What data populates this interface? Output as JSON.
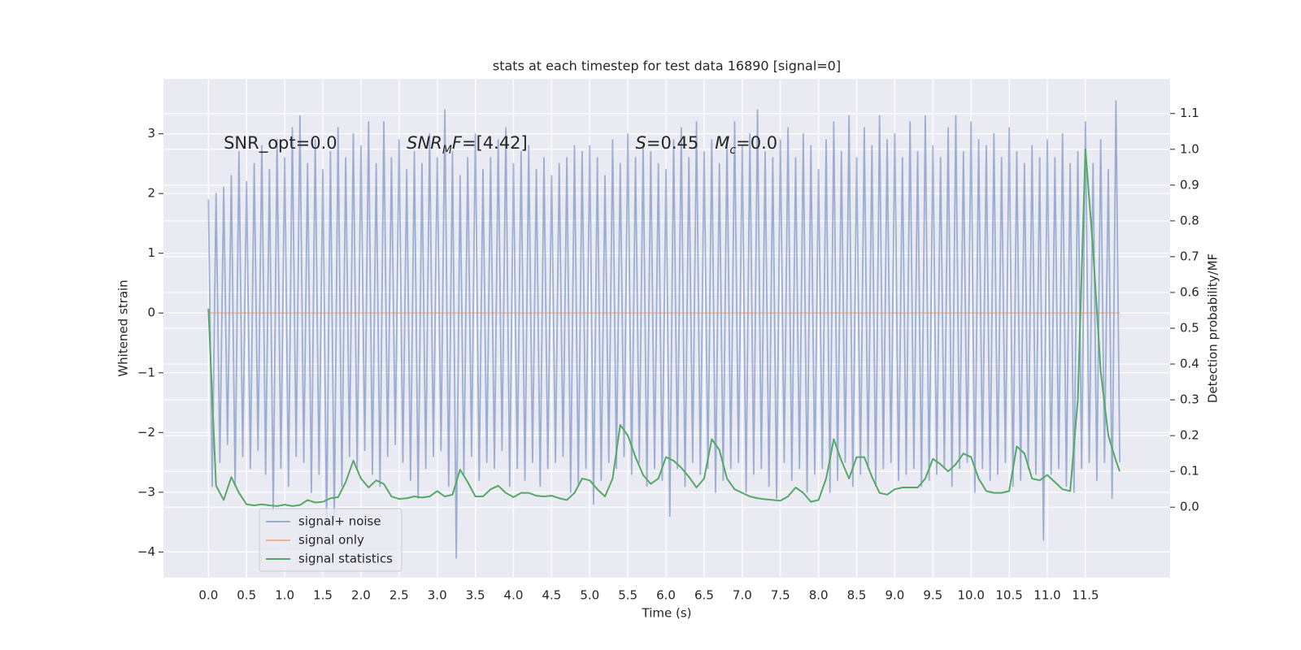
{
  "chart_data": {
    "type": "line",
    "title": "stats at each timestep for test data 16890 [signal=0]",
    "xlabel": "Time (s)",
    "ylabel": "Whitened strain",
    "y2label": "Detection probability/MF",
    "annotations": [
      [
        {
          "text": "SNR_opt=0.0",
          "italic": false,
          "sub": false
        }
      ],
      [
        {
          "text": "SNR",
          "italic": true,
          "sub": false
        },
        {
          "text": "M",
          "italic": true,
          "sub": true
        },
        {
          "text": "F",
          "italic": true,
          "sub": false
        },
        {
          "text": "=[4.42]",
          "italic": false,
          "sub": false
        }
      ],
      [
        {
          "text": "S",
          "italic": true,
          "sub": false
        },
        {
          "text": "=0.45   ",
          "italic": false,
          "sub": false
        },
        {
          "text": "M",
          "italic": true,
          "sub": false
        },
        {
          "text": "c",
          "italic": true,
          "sub": true
        },
        {
          "text": "=0.0",
          "italic": false,
          "sub": false
        }
      ]
    ],
    "xlim": [
      -0.59,
      12.61
    ],
    "ylim": [
      -4.43,
      3.92
    ],
    "y2lim": [
      -0.197,
      1.197
    ],
    "xticks": [
      {
        "value": 0,
        "label": "0.0"
      },
      0.5,
      {
        "value": 1,
        "label": "1.0"
      },
      1.5,
      {
        "value": 2,
        "label": "2.0"
      },
      2.5,
      {
        "value": 3,
        "label": "3.0"
      },
      3.5,
      {
        "value": 4,
        "label": "4.0"
      },
      4.5,
      {
        "value": 5,
        "label": "5.0"
      },
      5.5,
      {
        "value": 6,
        "label": "6.0"
      },
      6.5,
      {
        "value": 7,
        "label": "7.0"
      },
      7.5,
      {
        "value": 8,
        "label": "8.0"
      },
      8.5,
      {
        "value": 9,
        "label": "9.0"
      },
      9.5,
      {
        "value": 10,
        "label": "10.0"
      },
      10.5,
      {
        "value": 11,
        "label": "11.0"
      },
      11.5
    ],
    "yticks": [
      {
        "value": -4,
        "label": "−4"
      },
      {
        "value": -3,
        "label": "−3"
      },
      {
        "value": -2,
        "label": "−2"
      },
      {
        "value": -1,
        "label": "−1"
      },
      0,
      1,
      2,
      3
    ],
    "y2ticks": [
      {
        "value": 0,
        "label": "0.0"
      },
      0.1,
      0.2,
      0.3,
      0.4,
      0.5,
      0.6,
      0.7,
      0.8,
      0.9,
      {
        "value": 1,
        "label": "1.0"
      },
      1.1
    ],
    "grid": true,
    "legend": "lower left",
    "background": "#eaeaf2",
    "series": [
      {
        "name": "signal+ noise",
        "color": "#4c72b0",
        "alpha": 0.5,
        "axis": "y",
        "x": [
          0,
          0.05,
          0.1,
          0.15,
          0.2,
          0.25,
          0.3,
          0.35,
          0.4,
          0.45,
          0.5,
          0.55,
          0.6,
          0.65,
          0.7,
          0.75,
          0.8,
          0.85,
          0.9,
          0.95,
          1,
          1.05,
          1.1,
          1.15,
          1.2,
          1.25,
          1.3,
          1.35,
          1.4,
          1.45,
          1.5,
          1.55,
          1.6,
          1.65,
          1.7,
          1.75,
          1.8,
          1.85,
          1.9,
          1.95,
          2,
          2.05,
          2.1,
          2.15,
          2.2,
          2.25,
          2.3,
          2.35,
          2.4,
          2.45,
          2.5,
          2.55,
          2.6,
          2.65,
          2.7,
          2.75,
          2.8,
          2.85,
          2.9,
          2.95,
          3,
          3.05,
          3.1,
          3.15,
          3.2,
          3.25,
          3.3,
          3.35,
          3.4,
          3.45,
          3.5,
          3.55,
          3.6,
          3.65,
          3.7,
          3.75,
          3.8,
          3.85,
          3.9,
          3.95,
          4,
          4.05,
          4.1,
          4.15,
          4.2,
          4.25,
          4.3,
          4.35,
          4.4,
          4.45,
          4.5,
          4.55,
          4.6,
          4.65,
          4.7,
          4.75,
          4.8,
          4.85,
          4.9,
          4.95,
          5,
          5.05,
          5.1,
          5.15,
          5.2,
          5.25,
          5.3,
          5.35,
          5.4,
          5.45,
          5.5,
          5.55,
          5.6,
          5.65,
          5.7,
          5.75,
          5.8,
          5.85,
          5.9,
          5.95,
          6,
          6.05,
          6.1,
          6.15,
          6.2,
          6.25,
          6.3,
          6.35,
          6.4,
          6.45,
          6.5,
          6.55,
          6.6,
          6.65,
          6.7,
          6.75,
          6.8,
          6.85,
          6.9,
          6.95,
          7,
          7.05,
          7.1,
          7.15,
          7.2,
          7.25,
          7.3,
          7.35,
          7.4,
          7.45,
          7.5,
          7.55,
          7.6,
          7.65,
          7.7,
          7.75,
          7.8,
          7.85,
          7.9,
          7.95,
          8,
          8.05,
          8.1,
          8.15,
          8.2,
          8.25,
          8.3,
          8.35,
          8.4,
          8.45,
          8.5,
          8.55,
          8.6,
          8.65,
          8.7,
          8.75,
          8.8,
          8.85,
          8.9,
          8.95,
          9,
          9.05,
          9.1,
          9.15,
          9.2,
          9.25,
          9.3,
          9.35,
          9.4,
          9.45,
          9.5,
          9.55,
          9.6,
          9.65,
          9.7,
          9.75,
          9.8,
          9.85,
          9.9,
          9.95,
          10,
          10.05,
          10.1,
          10.15,
          10.2,
          10.25,
          10.3,
          10.35,
          10.4,
          10.45,
          10.5,
          10.55,
          10.6,
          10.65,
          10.7,
          10.75,
          10.8,
          10.85,
          10.9,
          10.95,
          11,
          11.05,
          11.1,
          11.15,
          11.2,
          11.25,
          11.3,
          11.35,
          11.4,
          11.45,
          11.5,
          11.55,
          11.6,
          11.65,
          11.7,
          11.75,
          11.8,
          11.85,
          11.9,
          11.95
        ],
        "values": [
          1.9,
          -2.9,
          2.0,
          -2.5,
          2.1,
          -2.2,
          2.3,
          -2.9,
          2.7,
          -2.4,
          2.2,
          -2.6,
          2.5,
          -2.3,
          2.8,
          -2.7,
          2.4,
          -3.3,
          2.9,
          -2.6,
          2.6,
          -2.9,
          3.1,
          -2.4,
          3.3,
          -2.5,
          2.5,
          -3.0,
          2.9,
          -2.7,
          2.4,
          -3.6,
          2.7,
          -3.5,
          3.1,
          -2.9,
          2.6,
          -2.4,
          3.0,
          -2.6,
          2.8,
          -2.3,
          3.2,
          -2.7,
          2.5,
          -2.9,
          3.2,
          -2.4,
          2.6,
          -2.2,
          2.9,
          -2.5,
          2.4,
          -2.8,
          2.7,
          -3.1,
          2.5,
          -2.6,
          3.0,
          -2.4,
          2.6,
          -2.3,
          3.4,
          -2.9,
          2.7,
          -4.1,
          2.3,
          -2.7,
          2.6,
          -2.4,
          3.0,
          -2.8,
          2.4,
          -2.5,
          2.6,
          -2.6,
          2.9,
          -2.3,
          3.1,
          -2.9,
          2.5,
          -2.6,
          2.7,
          -2.8,
          2.8,
          -2.5,
          2.4,
          -2.9,
          2.6,
          -2.6,
          2.3,
          -2.5,
          2.5,
          -2.4,
          2.6,
          -3.0,
          2.8,
          -2.9,
          2.7,
          -2.6,
          2.8,
          -3.2,
          2.6,
          -2.8,
          2.3,
          -2.5,
          2.9,
          -2.6,
          2.5,
          -2.4,
          3.0,
          -2.7,
          2.6,
          -2.5,
          2.8,
          -2.9,
          2.7,
          -2.6,
          2.5,
          -2.8,
          2.4,
          -3.4,
          2.9,
          -2.6,
          3.1,
          -2.9,
          2.6,
          -2.5,
          3.2,
          -2.7,
          2.7,
          -2.6,
          2.9,
          -3.0,
          2.5,
          -2.8,
          2.9,
          -2.6,
          3.2,
          -2.5,
          2.8,
          -3.0,
          3.0,
          -2.7,
          3.4,
          -2.6,
          2.7,
          -2.9,
          2.6,
          -3.1,
          2.9,
          -2.5,
          3.1,
          -2.8,
          2.6,
          -2.6,
          3.0,
          -3.0,
          2.8,
          -2.7,
          2.4,
          -2.6,
          2.9,
          -3.0,
          3.2,
          -2.8,
          2.7,
          -2.5,
          3.3,
          -2.9,
          2.6,
          -2.7,
          3.1,
          -2.6,
          2.8,
          -2.9,
          3.3,
          -2.6,
          2.9,
          -2.5,
          3.0,
          -2.8,
          2.6,
          -2.7,
          3.2,
          -2.6,
          2.7,
          -2.9,
          3.3,
          -2.8,
          2.8,
          -2.7,
          2.6,
          -2.6,
          3.1,
          -2.9,
          3.3,
          -2.6,
          2.7,
          -2.5,
          3.2,
          -3.0,
          2.9,
          -2.6,
          2.8,
          -2.8,
          3.0,
          -2.7,
          2.6,
          -2.5,
          3.1,
          -2.9,
          2.7,
          -2.8,
          2.5,
          -2.6,
          2.8,
          -2.7,
          2.6,
          -3.8,
          2.9,
          -2.7,
          2.6,
          -2.6,
          3.0,
          -2.9,
          2.5,
          -3.0,
          2.7,
          -2.6,
          3.2,
          -2.5,
          2.5,
          -2.8,
          2.9,
          -2.5,
          2.4,
          -3.1,
          3.55,
          -2.5
        ]
      },
      {
        "name": "signal only",
        "color": "#dd8452",
        "alpha": 0.5,
        "axis": "y",
        "x": [
          0,
          11.95
        ],
        "values": [
          0,
          0
        ]
      },
      {
        "name": "signal statistics",
        "color": "#55a868",
        "alpha": 1,
        "axis": "y2",
        "x": [
          0,
          0.1,
          0.2,
          0.3,
          0.4,
          0.5,
          0.6,
          0.7,
          0.8,
          0.9,
          1,
          1.1,
          1.2,
          1.3,
          1.4,
          1.5,
          1.6,
          1.7,
          1.8,
          1.9,
          2,
          2.1,
          2.2,
          2.3,
          2.4,
          2.5,
          2.6,
          2.7,
          2.8,
          2.9,
          3,
          3.1,
          3.2,
          3.3,
          3.4,
          3.5,
          3.6,
          3.7,
          3.8,
          3.9,
          4,
          4.1,
          4.2,
          4.3,
          4.4,
          4.5,
          4.6,
          4.7,
          4.8,
          4.9,
          5,
          5.1,
          5.2,
          5.3,
          5.4,
          5.5,
          5.6,
          5.7,
          5.8,
          5.9,
          6,
          6.1,
          6.2,
          6.3,
          6.4,
          6.5,
          6.6,
          6.7,
          6.8,
          6.9,
          7,
          7.1,
          7.2,
          7.3,
          7.4,
          7.5,
          7.6,
          7.7,
          7.8,
          7.9,
          8,
          8.1,
          8.2,
          8.3,
          8.4,
          8.5,
          8.6,
          8.7,
          8.8,
          8.9,
          9,
          9.1,
          9.2,
          9.3,
          9.4,
          9.5,
          9.6,
          9.7,
          9.8,
          9.9,
          10,
          10.1,
          10.2,
          10.3,
          10.4,
          10.5,
          10.6,
          10.7,
          10.8,
          10.9,
          11,
          11.1,
          11.2,
          11.3,
          11.4,
          11.5,
          11.6,
          11.7,
          11.8,
          11.9,
          11.95
        ],
        "values": [
          0.555,
          0.06,
          0.02,
          0.084,
          0.04,
          0.008,
          0.005,
          0.008,
          0.005,
          0.003,
          0.007,
          0.003,
          0.006,
          0.02,
          0.013,
          0.015,
          0.025,
          0.028,
          0.07,
          0.13,
          0.08,
          0.055,
          0.075,
          0.065,
          0.03,
          0.023,
          0.025,
          0.03,
          0.027,
          0.03,
          0.045,
          0.03,
          0.035,
          0.105,
          0.07,
          0.03,
          0.03,
          0.05,
          0.06,
          0.04,
          0.028,
          0.04,
          0.04,
          0.032,
          0.03,
          0.032,
          0.025,
          0.02,
          0.04,
          0.08,
          0.075,
          0.05,
          0.03,
          0.08,
          0.23,
          0.2,
          0.14,
          0.09,
          0.065,
          0.08,
          0.14,
          0.13,
          0.11,
          0.085,
          0.055,
          0.08,
          0.19,
          0.16,
          0.08,
          0.05,
          0.04,
          0.03,
          0.025,
          0.022,
          0.02,
          0.018,
          0.03,
          0.055,
          0.04,
          0.015,
          0.02,
          0.08,
          0.19,
          0.13,
          0.08,
          0.14,
          0.14,
          0.085,
          0.04,
          0.035,
          0.05,
          0.055,
          0.055,
          0.055,
          0.08,
          0.135,
          0.12,
          0.1,
          0.12,
          0.15,
          0.14,
          0.08,
          0.045,
          0.04,
          0.04,
          0.045,
          0.17,
          0.15,
          0.08,
          0.075,
          0.09,
          0.07,
          0.05,
          0.045,
          0.3,
          1.0,
          0.72,
          0.38,
          0.2,
          0.13,
          0.1
        ]
      }
    ]
  }
}
